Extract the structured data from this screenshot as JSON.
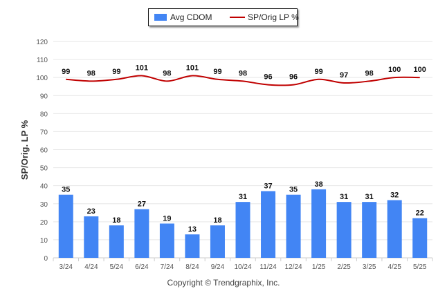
{
  "chart_data": {
    "type": "bar",
    "categories": [
      "3/24",
      "4/24",
      "5/24",
      "6/24",
      "7/24",
      "8/24",
      "9/24",
      "10/24",
      "11/24",
      "12/24",
      "1/25",
      "2/25",
      "3/25",
      "4/25",
      "5/25"
    ],
    "series": [
      {
        "name": "Avg CDOM",
        "type": "bar",
        "color": "#4285f4",
        "values": [
          35,
          23,
          18,
          27,
          19,
          13,
          18,
          31,
          37,
          35,
          38,
          31,
          31,
          32,
          22
        ]
      },
      {
        "name": "SP/Orig LP %",
        "type": "line",
        "color": "#c00000",
        "values": [
          99,
          98,
          99,
          101,
          98,
          101,
          99,
          98,
          96,
          96,
          99,
          97,
          98,
          100,
          100
        ]
      }
    ],
    "ylabel": "SP/Orig. LP %",
    "ylim": [
      0,
      120
    ],
    "yticks": [
      0,
      10,
      20,
      30,
      40,
      50,
      60,
      70,
      80,
      90,
      100,
      110,
      120
    ],
    "grid": true,
    "legend_position": "top-center"
  },
  "footer": "Copyright © Trendgraphix, Inc."
}
